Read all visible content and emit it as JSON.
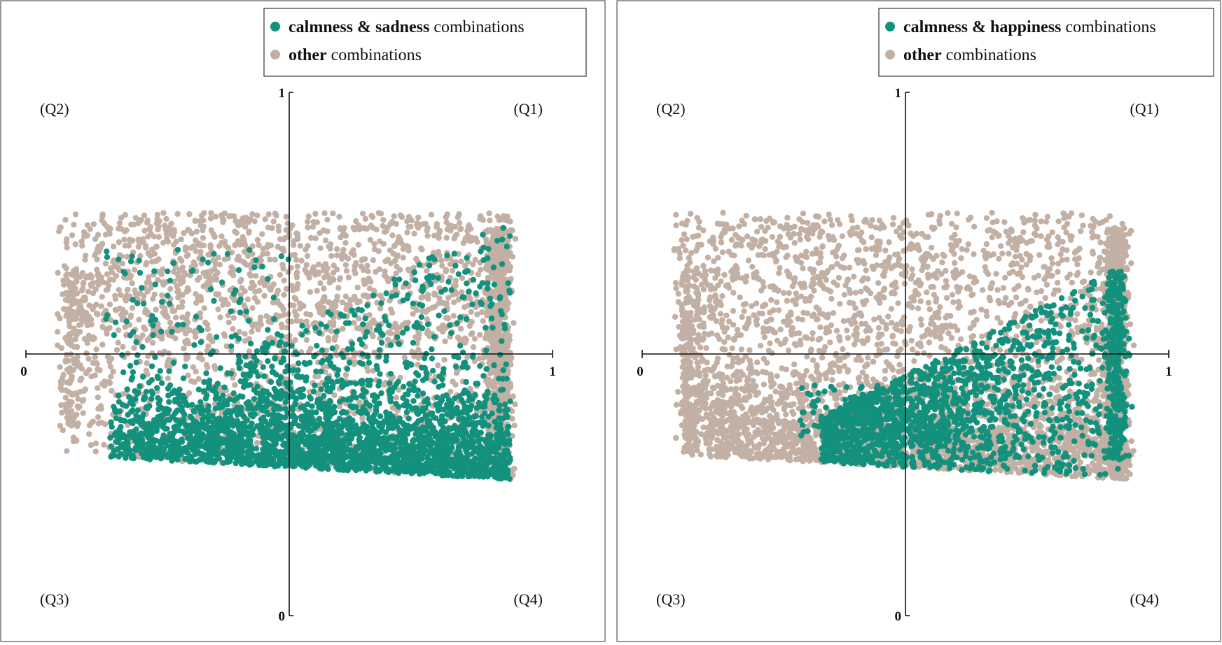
{
  "colors": {
    "highlight": "#13917d",
    "other": "#c2b0a4"
  },
  "chart_data": [
    {
      "type": "scatter",
      "legend": {
        "placement": "top-right",
        "entries": [
          {
            "bold": "calmness & sadness",
            "rest": " combinations",
            "color": "#13917d"
          },
          {
            "bold": "other",
            "rest": " combinations",
            "color": "#c2b0a4"
          }
        ]
      },
      "xlim": [
        0,
        1
      ],
      "ylim": [
        0,
        1
      ],
      "x_ticks": [
        "0",
        "1"
      ],
      "y_ticks": [
        "1",
        "0"
      ],
      "quadrants": [
        "(Q2)",
        "(Q1)",
        "(Q3)",
        "(Q4)"
      ],
      "grid": false,
      "series": [
        {
          "name": "calmness & sadness combinations",
          "color": "#13917d",
          "distribution": "dense band of points mostly below y=0.5, spanning x≈0.15–0.92, bounded below by a line from (0.2,0.30) to (0.92,0.26)"
        },
        {
          "name": "other combinations",
          "color": "#c2b0a4",
          "distribution": "points across x≈0.05–0.95, y≈0.24–0.80, densest near x≈0.92"
        }
      ]
    },
    {
      "type": "scatter",
      "legend": {
        "placement": "top-right",
        "entries": [
          {
            "bold": "calmness & happiness",
            "rest": " combinations",
            "color": "#13917d"
          },
          {
            "bold": "other",
            "rest": " combinations",
            "color": "#c2b0a4"
          }
        ]
      },
      "xlim": [
        0,
        1
      ],
      "ylim": [
        0,
        1
      ],
      "x_ticks": [
        "0",
        "1"
      ],
      "y_ticks": [
        "1",
        "0"
      ],
      "quadrants": [
        "(Q2)",
        "(Q1)",
        "(Q3)",
        "(Q4)"
      ],
      "grid": false,
      "series": [
        {
          "name": "calmness & happiness combinations",
          "color": "#13917d",
          "distribution": "points concentrated toward the right half, x≈0.35–0.92, y≈0.25–0.62, densest near x≈0.9"
        },
        {
          "name": "other combinations",
          "color": "#c2b0a4",
          "distribution": "points across x≈0.05–0.95, y≈0.24–0.80, dense lower-left band"
        }
      ]
    }
  ]
}
